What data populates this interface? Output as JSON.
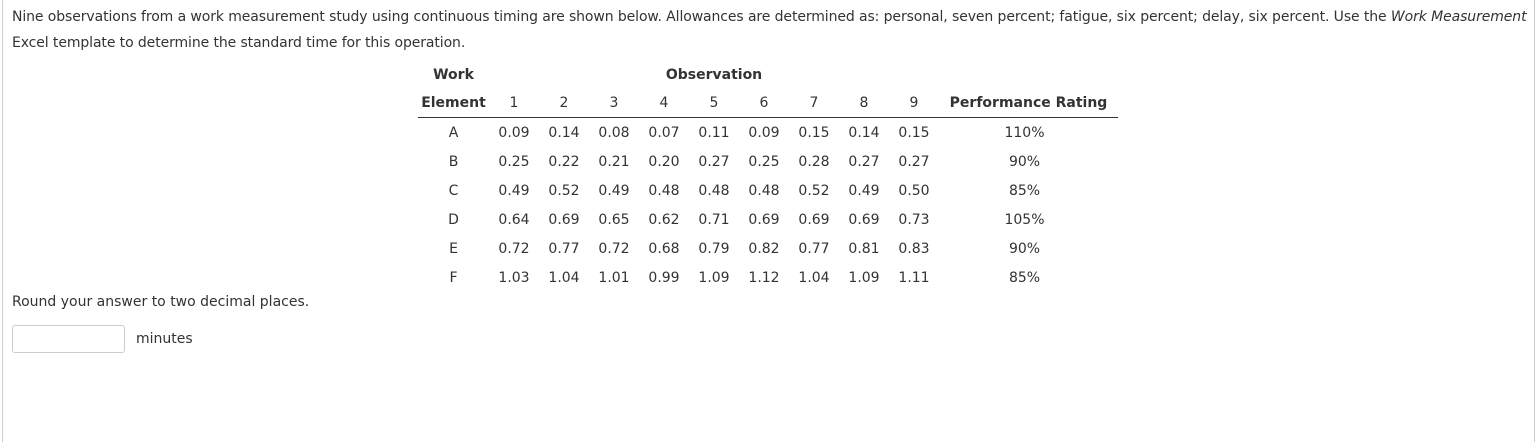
{
  "question": {
    "text_before": "Nine observations from a work measurement study using continuous timing are shown below. Allowances are determined as: personal, seven percent; fatigue, six percent; delay, six percent. Use the ",
    "text_italic": "Work Measurement",
    "text_after": " Excel template to determine the standard time for this operation."
  },
  "table": {
    "header_work": "Work",
    "header_observation": "Observation",
    "header_element": "Element",
    "observations": [
      "1",
      "2",
      "3",
      "4",
      "5",
      "6",
      "7",
      "8",
      "9"
    ],
    "header_rating": "Performance Rating",
    "rows": [
      {
        "element": "A",
        "times": [
          "0.09",
          "0.14",
          "0.08",
          "0.07",
          "0.11",
          "0.09",
          "0.15",
          "0.14",
          "0.15"
        ],
        "rating": "110%"
      },
      {
        "element": "B",
        "times": [
          "0.25",
          "0.22",
          "0.21",
          "0.20",
          "0.27",
          "0.25",
          "0.28",
          "0.27",
          "0.27"
        ],
        "rating": "90%"
      },
      {
        "element": "C",
        "times": [
          "0.49",
          "0.52",
          "0.49",
          "0.48",
          "0.48",
          "0.48",
          "0.52",
          "0.49",
          "0.50"
        ],
        "rating": "85%"
      },
      {
        "element": "D",
        "times": [
          "0.64",
          "0.69",
          "0.65",
          "0.62",
          "0.71",
          "0.69",
          "0.69",
          "0.69",
          "0.73"
        ],
        "rating": "105%"
      },
      {
        "element": "E",
        "times": [
          "0.72",
          "0.77",
          "0.72",
          "0.68",
          "0.79",
          "0.82",
          "0.77",
          "0.81",
          "0.83"
        ],
        "rating": "90%"
      },
      {
        "element": "F",
        "times": [
          "1.03",
          "1.04",
          "1.01",
          "0.99",
          "1.09",
          "1.12",
          "1.04",
          "1.09",
          "1.11"
        ],
        "rating": "85%"
      }
    ]
  },
  "answer": {
    "instruction": "Round your answer to two decimal places.",
    "unit": "minutes"
  }
}
